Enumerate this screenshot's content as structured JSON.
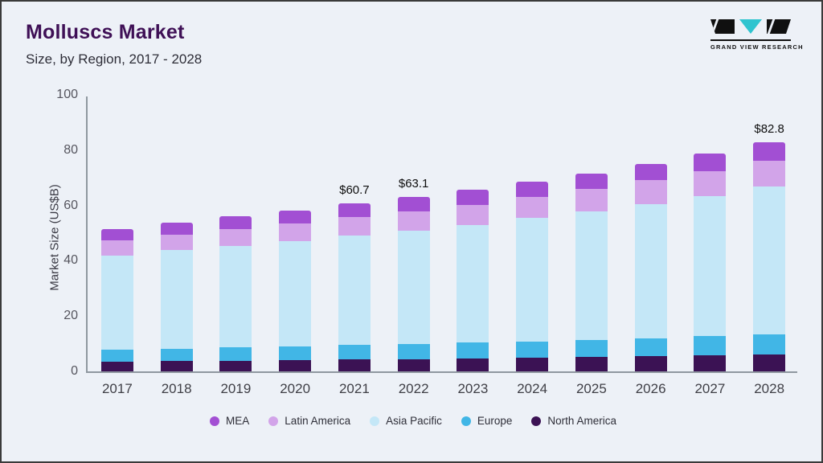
{
  "header": {
    "title": "Molluscs Market",
    "subtitle": "Size, by Region, 2017 - 2028"
  },
  "logo": {
    "text": "GRAND VIEW RESEARCH",
    "accent_color": "#2fc4cf"
  },
  "chart_data": {
    "type": "bar",
    "stacked": true,
    "title": "Molluscs Market Size, by Region, 2017 - 2028",
    "ylabel": "Market Size (US$B)",
    "xlabel": "",
    "ylim": [
      0,
      100
    ],
    "yticks": [
      0,
      20,
      40,
      60,
      80,
      100
    ],
    "grid": false,
    "legend_position": "bottom",
    "categories": [
      "2017",
      "2018",
      "2019",
      "2020",
      "2021",
      "2022",
      "2023",
      "2024",
      "2025",
      "2026",
      "2027",
      "2028"
    ],
    "series": [
      {
        "name": "North America",
        "color": "#3b1254",
        "values": [
          3.5,
          3.7,
          3.9,
          4.1,
          4.3,
          4.5,
          4.7,
          5.0,
          5.2,
          5.5,
          5.8,
          6.2
        ]
      },
      {
        "name": "Europe",
        "color": "#41b6e6",
        "values": [
          4.3,
          4.5,
          4.7,
          4.9,
          5.2,
          5.4,
          5.7,
          5.9,
          6.2,
          6.5,
          6.9,
          7.2
        ]
      },
      {
        "name": "Asia Pacific",
        "color": "#c4e7f7",
        "values": [
          34.2,
          35.6,
          36.9,
          38.2,
          39.5,
          41.0,
          42.6,
          44.5,
          46.4,
          48.6,
          50.8,
          53.4
        ]
      },
      {
        "name": "Latin America",
        "color": "#d2a4e9",
        "values": [
          5.4,
          5.7,
          6.0,
          6.3,
          6.7,
          7.0,
          7.3,
          7.7,
          8.1,
          8.5,
          9.0,
          9.5
        ]
      },
      {
        "name": "MEA",
        "color": "#a24fd3",
        "values": [
          4.1,
          4.2,
          4.6,
          4.7,
          5.0,
          5.2,
          5.3,
          5.4,
          5.5,
          5.9,
          6.3,
          6.5
        ]
      }
    ],
    "totals": [
      51.5,
      53.7,
      56.1,
      58.2,
      60.7,
      63.1,
      65.6,
      68.5,
      71.4,
      75.0,
      78.8,
      82.8
    ],
    "bar_labels": {
      "2021": "$60.7",
      "2022": "$63.1",
      "2028": "$82.8"
    },
    "legend_order": [
      "MEA",
      "Latin America",
      "Asia Pacific",
      "Europe",
      "North America"
    ]
  }
}
